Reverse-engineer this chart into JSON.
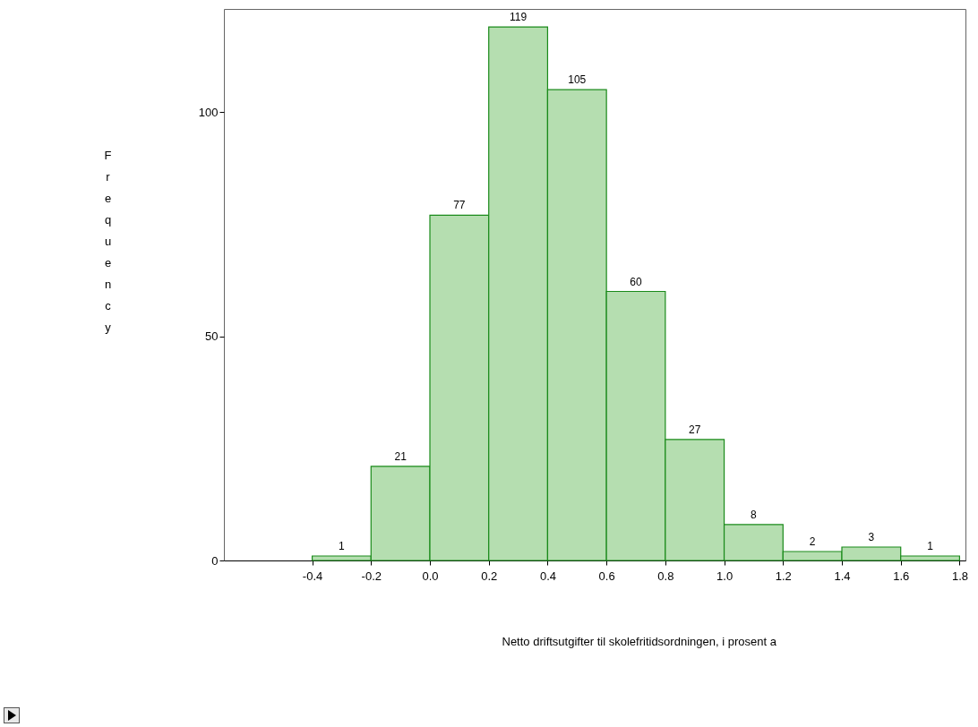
{
  "chart_data": {
    "type": "histogram",
    "xlabel": "Netto driftsutgifter til skolefritidsordningen, i prosent a",
    "ylabel": "Frequency",
    "bins": [
      -0.4,
      -0.2,
      0.0,
      0.2,
      0.4,
      0.6,
      0.8,
      1.0,
      1.2,
      1.4,
      1.6,
      1.8
    ],
    "values": [
      1,
      21,
      77,
      119,
      105,
      60,
      27,
      8,
      2,
      3,
      1
    ],
    "color": "#b5deb0",
    "data_labels": true,
    "xlim": [
      -0.7,
      1.82
    ],
    "xticks": [
      {
        "value": -0.4,
        "label": "-0.4"
      },
      {
        "value": -0.2,
        "label": "-0.2"
      },
      {
        "value": 0,
        "label": "0.0"
      },
      {
        "value": 0.2,
        "label": "0.2"
      },
      {
        "value": 0.4,
        "label": "0.4"
      },
      {
        "value": 0.6,
        "label": "0.6"
      },
      {
        "value": 0.8,
        "label": "0.8"
      },
      {
        "value": 1,
        "label": "1.0"
      },
      {
        "value": 1.2,
        "label": "1.2"
      },
      {
        "value": 1.4,
        "label": "1.4"
      },
      {
        "value": 1.6,
        "label": "1.6"
      },
      {
        "value": 1.8,
        "label": "1.8"
      }
    ],
    "ylim": [
      0,
      123
    ],
    "yticks": [
      0,
      50,
      100
    ],
    "grid": false
  }
}
